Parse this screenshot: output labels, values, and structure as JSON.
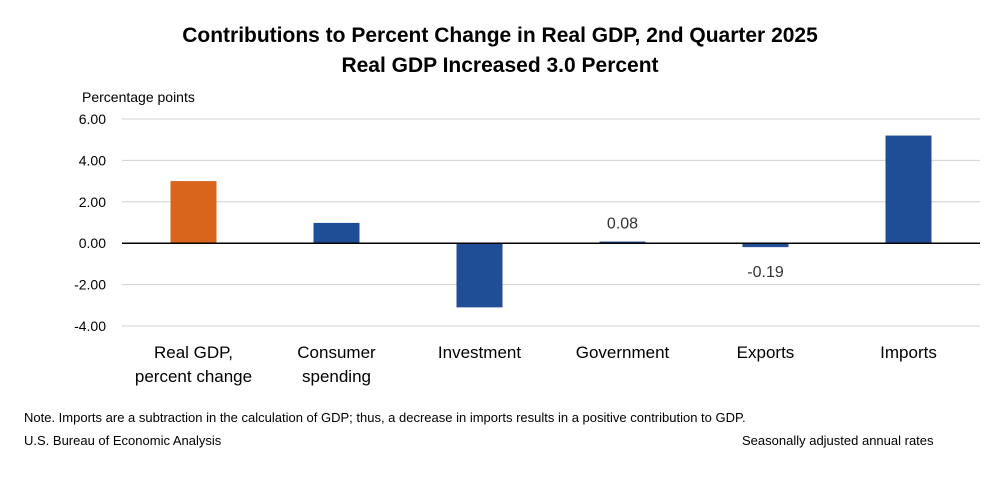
{
  "colors": {
    "gdp_bar": "#d9651c",
    "component_bar": "#1f4e96",
    "gridline": "#d0d0d0",
    "zero_line": "#000000"
  },
  "chart_data": {
    "type": "bar",
    "title": "Contributions to Percent Change in Real GDP, 2nd Quarter 2025",
    "subtitle": "Real GDP Increased 3.0 Percent",
    "ylabel": "Percentage points",
    "ylim": [
      -4,
      6
    ],
    "yticks": [
      6,
      4,
      2,
      0,
      -2,
      -4
    ],
    "ytick_labels": [
      "6.00",
      "4.00",
      "2.00",
      "0.00",
      "-2.00",
      "-4.00"
    ],
    "grid": true,
    "categories": [
      [
        "Real GDP,",
        "percent change"
      ],
      [
        "Consumer",
        "spending"
      ],
      [
        "Investment"
      ],
      [
        "Government"
      ],
      [
        "Exports"
      ],
      [
        "Imports"
      ]
    ],
    "values": [
      3.0,
      0.98,
      -3.1,
      0.08,
      -0.19,
      5.2
    ],
    "bar_colors": [
      "gdp_bar",
      "component_bar",
      "component_bar",
      "component_bar",
      "component_bar",
      "component_bar"
    ],
    "data_labels": [
      null,
      null,
      null,
      "0.08",
      "-0.19",
      null
    ]
  },
  "footer": {
    "note": "Note. Imports are a subtraction in the calculation of GDP; thus, a decrease in imports results in a positive contribution to GDP.",
    "source": "U.S. Bureau of Economic Analysis",
    "seasonal": "Seasonally adjusted annual rates"
  }
}
